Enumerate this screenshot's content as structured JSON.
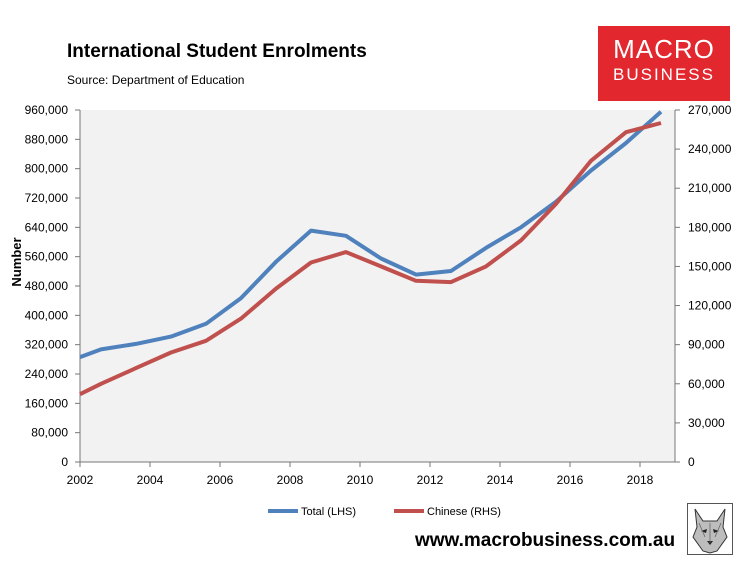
{
  "header": {
    "title": "International Student Enrolments",
    "source": "Source: Department of Education"
  },
  "logo": {
    "line1": "MACRO",
    "line2": "BUSINESS",
    "color": "#e2272f"
  },
  "footer": {
    "website": "www.macrobusiness.com.au"
  },
  "chart_data": {
    "type": "line",
    "title": "International Student Enrolments",
    "ylabel": "Number",
    "xlabel": "",
    "x": [
      2002,
      2002.6,
      2003.6,
      2004.6,
      2005.6,
      2006.6,
      2007.6,
      2008.6,
      2009.6,
      2010.6,
      2011.6,
      2012.6,
      2013.6,
      2014.6,
      2015.6,
      2016.6,
      2017.6,
      2018.6
    ],
    "x_ticks": [
      "2002",
      "2004",
      "2006",
      "2008",
      "2010",
      "2012",
      "2014",
      "2016",
      "2018"
    ],
    "x_tick_values": [
      2002,
      2004,
      2006,
      2008,
      2010,
      2012,
      2014,
      2016,
      2018
    ],
    "xlim": [
      2002,
      2019
    ],
    "ylim_left": [
      0,
      960000
    ],
    "ylim_right": [
      0,
      270000
    ],
    "y_ticks_left": [
      "0",
      "80,000",
      "160,000",
      "240,000",
      "320,000",
      "400,000",
      "480,000",
      "560,000",
      "640,000",
      "720,000",
      "800,000",
      "880,000",
      "960,000"
    ],
    "y_ticks_right": [
      "0",
      "30,000",
      "60,000",
      "90,000",
      "120,000",
      "150,000",
      "180,000",
      "210,000",
      "240,000",
      "270,000"
    ],
    "series": [
      {
        "name": "Total (LHS)",
        "axis": "left",
        "color": "#4f81bd",
        "values": [
          286000,
          307000,
          322000,
          342000,
          377000,
          447000,
          546000,
          631000,
          617000,
          555000,
          511000,
          521000,
          584000,
          640000,
          710000,
          795000,
          870000,
          955000
        ]
      },
      {
        "name": "Chinese (RHS)",
        "axis": "right",
        "color": "#c0504d",
        "values": [
          52000,
          60000,
          72000,
          84000,
          93000,
          110000,
          133000,
          153000,
          161000,
          150000,
          139000,
          138000,
          150000,
          170000,
          198000,
          231000,
          253000,
          260000
        ]
      }
    ],
    "legend": [
      "Total (LHS)",
      "Chinese (RHS)"
    ],
    "legend_position": "bottom",
    "grid": false
  }
}
